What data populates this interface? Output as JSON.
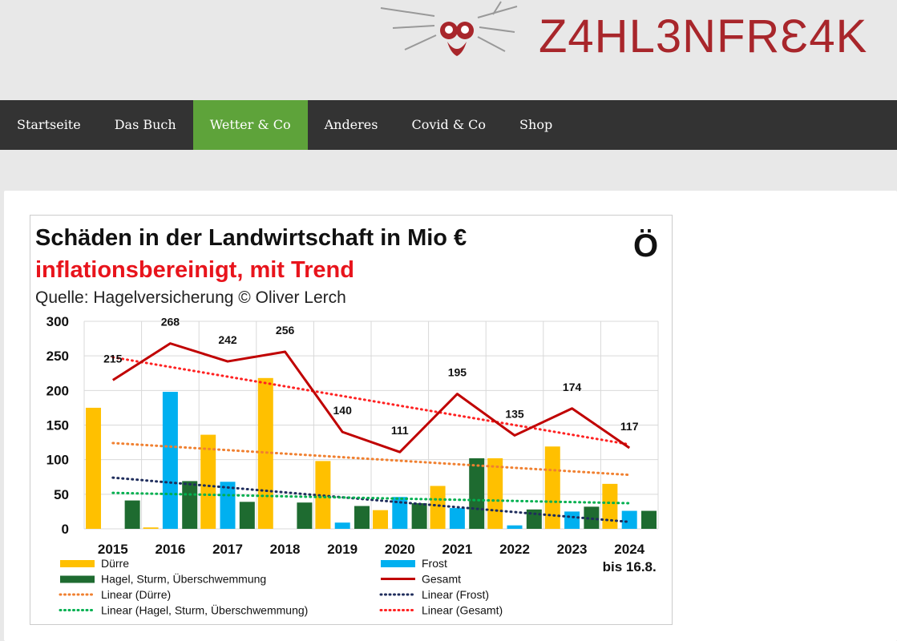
{
  "site": {
    "logo_text": "Z4HL3NFRƐ4K",
    "logo_icon": "mouse-whiskers-icon",
    "brand_color": "#a8262b"
  },
  "nav": {
    "items": [
      {
        "label": "Startseite",
        "active": false
      },
      {
        "label": "Das Buch",
        "active": false
      },
      {
        "label": "Wetter & Co",
        "active": true
      },
      {
        "label": "Anderes",
        "active": false
      },
      {
        "label": "Covid & Co",
        "active": false
      },
      {
        "label": "Shop",
        "active": false
      }
    ],
    "active_color": "#5ea33a"
  },
  "chart_data": {
    "type": "bar",
    "title": "Schäden in der Landwirtschaft in Mio €",
    "subtitle": "inflationsbereinigt, mit Trend",
    "source": "Quelle: Hagelversicherung © Oliver Lerch",
    "logo": "Ö",
    "categories": [
      "2015",
      "2016",
      "2017",
      "2018",
      "2019",
      "2020",
      "2021",
      "2022",
      "2023",
      "2024"
    ],
    "category_note": {
      "2024": "bis 16.8."
    },
    "ylim": [
      0,
      300
    ],
    "yticks": [
      0,
      50,
      100,
      150,
      200,
      250,
      300
    ],
    "grid": true,
    "series": [
      {
        "name": "Dürre",
        "kind": "bar",
        "color": "#ffc000",
        "values": [
          175,
          2,
          136,
          218,
          98,
          27,
          62,
          102,
          119,
          65
        ]
      },
      {
        "name": "Frost",
        "kind": "bar",
        "color": "#00b0f0",
        "values": [
          0,
          198,
          68,
          0,
          9,
          46,
          30,
          5,
          25,
          26
        ]
      },
      {
        "name": "Hagel, Sturm, Überschwemmung",
        "kind": "bar",
        "color": "#1e6b30",
        "values": [
          41,
          69,
          39,
          38,
          33,
          37,
          102,
          28,
          32,
          26
        ]
      },
      {
        "name": "Gesamt",
        "kind": "line",
        "color": "#c00000",
        "values": [
          215,
          268,
          242,
          256,
          140,
          111,
          195,
          135,
          174,
          117
        ]
      }
    ],
    "trends": [
      {
        "name": "Linear (Dürre)",
        "color": "#f08030",
        "start": 124,
        "end": 78
      },
      {
        "name": "Linear (Frost)",
        "color": "#1f2d5c",
        "start": 74,
        "end": 10
      },
      {
        "name": "Linear (Hagel, Sturm, Überschwemmung)",
        "color": "#00b050",
        "start": 52,
        "end": 37
      },
      {
        "name": "Linear (Gesamt)",
        "color": "#ff2020",
        "start": 248,
        "end": 122
      }
    ],
    "legend_position": "bottom"
  }
}
